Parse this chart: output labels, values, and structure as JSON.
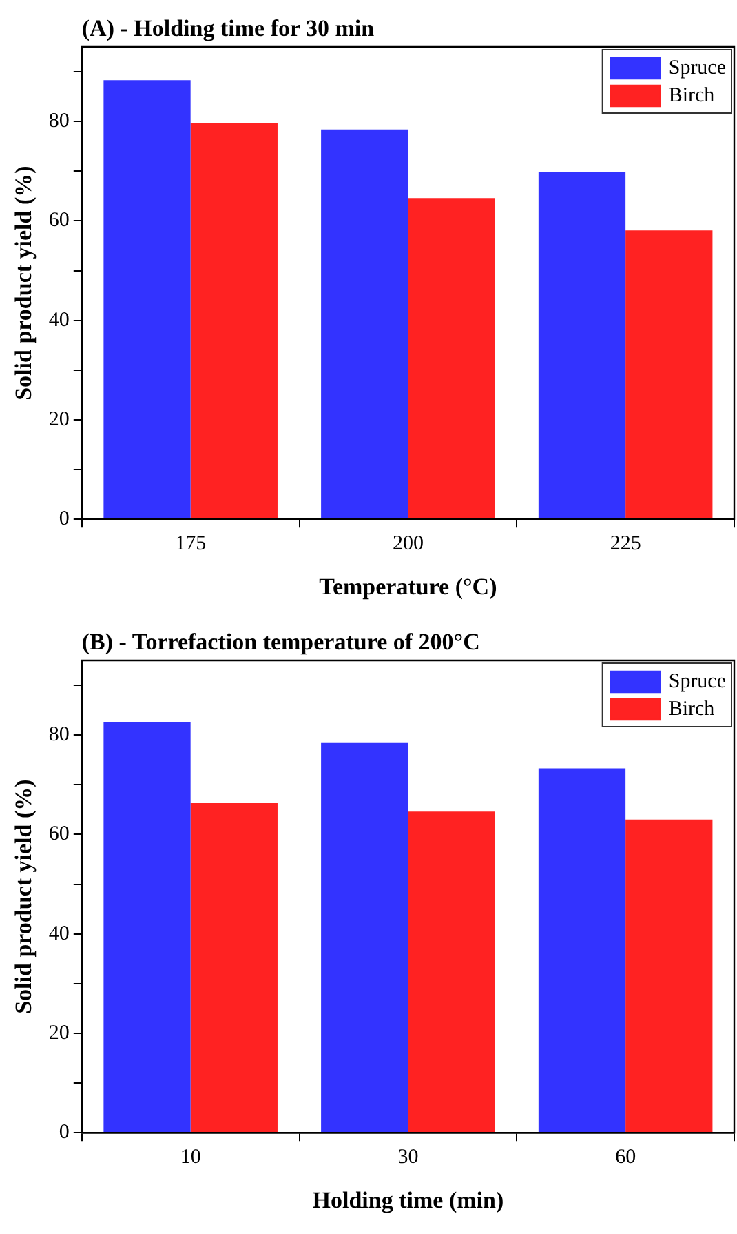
{
  "chart_data": [
    {
      "type": "bar",
      "title": "(A) - Holding time for 30 min",
      "xlabel": "Temperature (°C)",
      "ylabel": "Solid product yield (%)",
      "categories": [
        "175",
        "200",
        "225"
      ],
      "series": [
        {
          "name": "Spruce",
          "color": "#3333ff",
          "values": [
            88.3,
            78.4,
            69.8
          ]
        },
        {
          "name": "Birch",
          "color": "#ff2222",
          "values": [
            79.6,
            64.6,
            58.1
          ]
        }
      ],
      "ylim": [
        0,
        95
      ],
      "yticks": [
        0,
        {
          "value": 10,
          "label": null
        },
        20,
        {
          "value": 30,
          "label": null
        },
        40,
        {
          "value": 50,
          "label": null
        },
        60,
        {
          "value": 70,
          "label": null
        },
        80,
        {
          "value": 90,
          "label": null
        }
      ],
      "grid": false,
      "legend": "top right"
    },
    {
      "type": "bar",
      "title": "(B) - Torrefaction temperature of 200°C",
      "xlabel": "Holding time (min)",
      "ylabel": "Solid product yield (%)",
      "categories": [
        "10",
        "30",
        "60"
      ],
      "series": [
        {
          "name": "Spruce",
          "color": "#3333ff",
          "values": [
            82.6,
            78.4,
            73.3
          ]
        },
        {
          "name": "Birch",
          "color": "#ff2222",
          "values": [
            66.3,
            64.6,
            63.0
          ]
        }
      ],
      "ylim": [
        0,
        95
      ],
      "yticks": [
        0,
        {
          "value": 10,
          "label": null
        },
        20,
        {
          "value": 30,
          "label": null
        },
        40,
        {
          "value": 50,
          "label": null
        },
        60,
        {
          "value": 70,
          "label": null
        },
        80,
        {
          "value": 90,
          "label": null
        }
      ],
      "grid": false,
      "legend": "top right"
    }
  ]
}
